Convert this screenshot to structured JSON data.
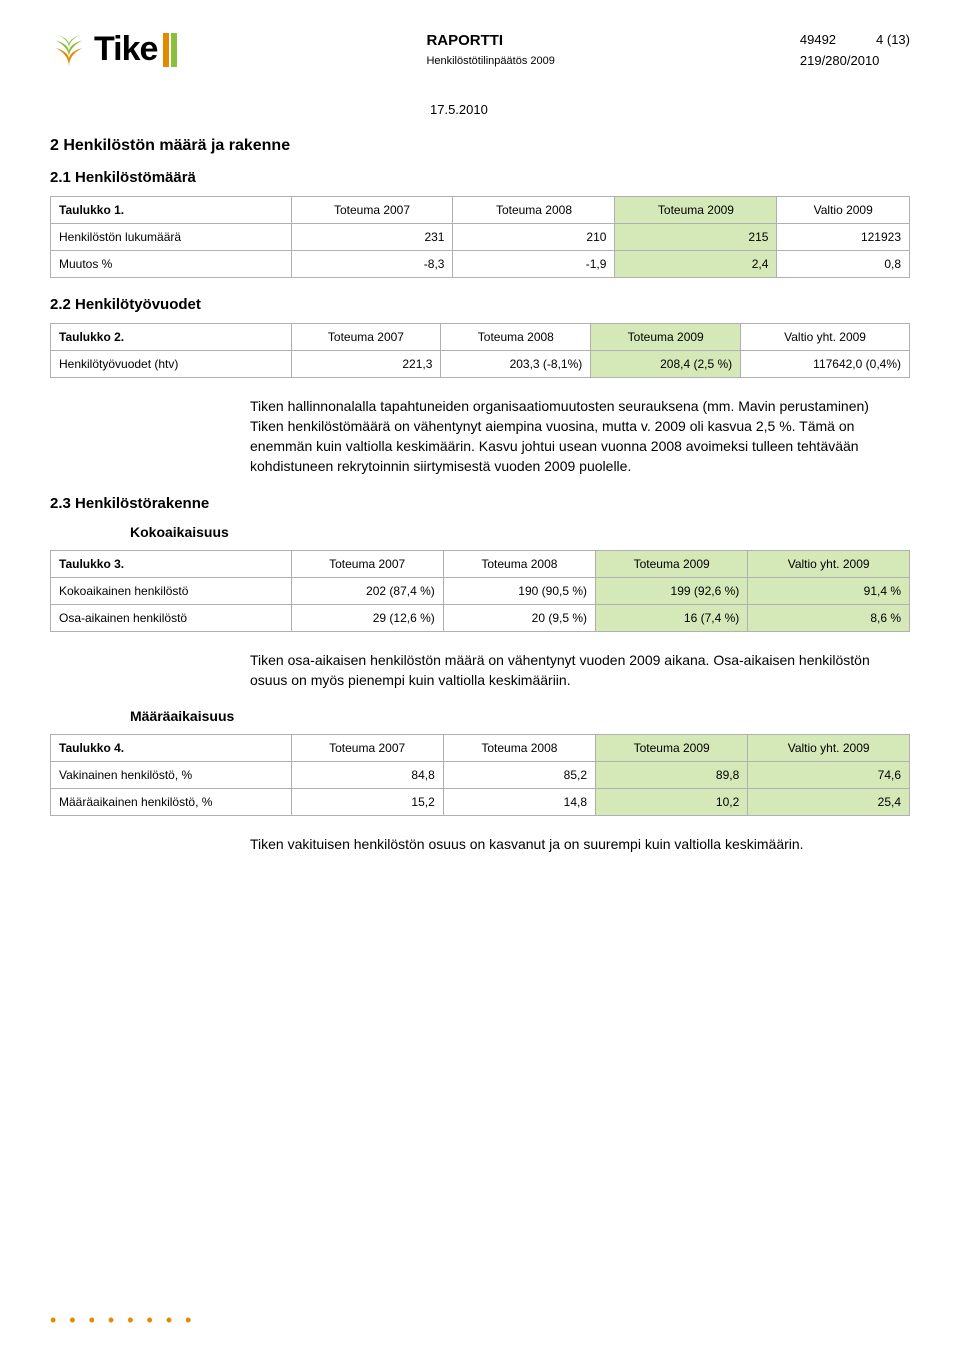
{
  "colors": {
    "highlight_green": "#d5e8b8",
    "orange": "#e38b00",
    "text": "#000000",
    "table_border": "#b0b0b0",
    "background": "#ffffff"
  },
  "header": {
    "brand": "Tike",
    "title": "RAPORTTI",
    "subtitle": "Henkilöstötilinpäätös 2009",
    "doc_id": "49492",
    "page": "4 (13)",
    "ref": "219/280/2010",
    "date": "17.5.2010"
  },
  "section2": {
    "title": "2 Henkilöstön määrä ja rakenne",
    "s21": {
      "title": "2.1 Henkilöstömäärä"
    },
    "s22": {
      "title": "2.2 Henkilötyövuodet"
    },
    "s23": {
      "title": "2.3 Henkilöstörakenne",
      "kokoaikaisuus": "Kokoaikaisuus",
      "maaraaikaisuus": "Määräaikaisuus"
    }
  },
  "table1": {
    "caption": "Taulukko 1.",
    "headers": [
      "Toteuma 2007",
      "Toteuma 2008",
      "Toteuma 2009",
      "Valtio 2009"
    ],
    "rows": [
      {
        "label": "Henkilöstön lukumäärä",
        "v": [
          "231",
          "210",
          "215",
          "121923"
        ]
      },
      {
        "label": "Muutos %",
        "v": [
          "-8,3",
          "-1,9",
          "2,4",
          "0,8"
        ]
      }
    ],
    "highlight_col": 2
  },
  "table2": {
    "caption": "Taulukko 2.",
    "headers": [
      "Toteuma 2007",
      "Toteuma 2008",
      "Toteuma 2009",
      "Valtio yht. 2009"
    ],
    "rows": [
      {
        "label": "Henkilötyövuodet (htv)",
        "v": [
          "221,3",
          "203,3 (-8,1%)",
          "208,4 (2,5 %)",
          "117642,0 (0,4%)"
        ]
      }
    ],
    "highlight_col": 2
  },
  "para1": "Tiken hallinnonalalla tapahtuneiden organisaatiomuutosten seurauksena (mm. Mavin perustaminen) Tiken henkilöstömäärä on vähentynyt aiempina vuosina, mutta v. 2009 oli kasvua 2,5 %. Tämä on enemmän kuin valtiolla keskimäärin. Kasvu johtui usean vuonna 2008 avoimeksi tulleen tehtävään kohdistuneen rekrytoinnin siirtymisestä vuoden 2009 puolelle.",
  "table3": {
    "caption": "Taulukko 3.",
    "headers": [
      "Toteuma 2007",
      "Toteuma 2008",
      "Toteuma 2009",
      "Valtio yht. 2009"
    ],
    "rows": [
      {
        "label": "Kokoaikainen henkilöstö",
        "v": [
          "202 (87,4 %)",
          "190 (90,5 %)",
          "199 (92,6 %)",
          "91,4 %"
        ]
      },
      {
        "label": "Osa-aikainen henkilöstö",
        "v": [
          "29 (12,6 %)",
          "20 (9,5 %)",
          "16 (7,4 %)",
          "8,6 %"
        ]
      }
    ],
    "highlight_cols": [
      2,
      3
    ]
  },
  "para2": "Tiken osa-aikaisen henkilöstön määrä on vähentynyt vuoden 2009 aikana. Osa-aikaisen henkilöstön osuus on myös pienempi kuin valtiolla keskimääriin.",
  "table4": {
    "caption": "Taulukko 4.",
    "headers": [
      "Toteuma 2007",
      "Toteuma 2008",
      "Toteuma 2009",
      "Valtio yht. 2009"
    ],
    "rows": [
      {
        "label": "Vakinainen henkilöstö, %",
        "v": [
          "84,8",
          "85,2",
          "89,8",
          "74,6"
        ]
      },
      {
        "label": "Määräaikainen henkilöstö, %",
        "v": [
          "15,2",
          "14,8",
          "10,2",
          "25,4"
        ]
      }
    ],
    "highlight_cols": [
      2,
      3
    ]
  },
  "para3": "Tiken vakituisen henkilöstön osuus on kasvanut ja on suurempi kuin valtiolla keskimäärin."
}
